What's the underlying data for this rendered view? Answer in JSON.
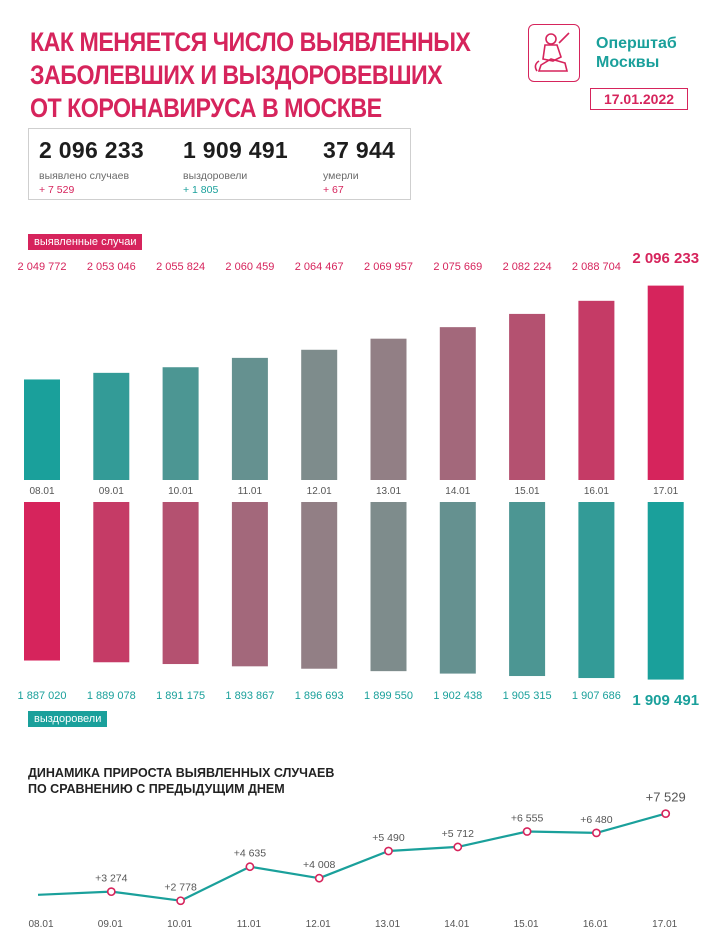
{
  "header": {
    "title_lines": [
      "КАК МЕНЯЕТСЯ ЧИСЛО ВЫЯВЛЕННЫХ",
      "ЗАБОЛЕВШИХ И ВЫЗДОРОВЕВШИХ",
      "ОТ КОРОНАВИРУСА В МОСКВЕ"
    ],
    "org_line1": "Оперштаб",
    "org_line2": "Москвы",
    "date": "17.01.2022"
  },
  "summary": {
    "cases": {
      "value": "2 096 233",
      "label": "выявлено случаев",
      "delta": "+ 7 529"
    },
    "recovered": {
      "value": "1 909 491",
      "label": "выздоровели",
      "delta": "+ 1 805"
    },
    "deaths": {
      "value": "37 944",
      "label": "умерли",
      "delta": "+ 67"
    }
  },
  "colors": {
    "pink": "#d6245c",
    "teal": "#1aa09b",
    "grey": "#8a8a8a"
  },
  "chart_data": [
    {
      "type": "bar",
      "title": "",
      "legend": "выявленные случаи",
      "categories": [
        "08.01",
        "09.01",
        "10.01",
        "11.01",
        "12.01",
        "13.01",
        "14.01",
        "15.01",
        "16.01",
        "17.01"
      ],
      "values": [
        2049772,
        2053046,
        2055824,
        2060459,
        2064467,
        2069957,
        2075669,
        2082224,
        2088704,
        2096233
      ],
      "value_labels": [
        "2 049 772",
        "2 053 046",
        "2 055 824",
        "2 060 459",
        "2 064 467",
        "2 069 957",
        "2 075 669",
        "2 082 224",
        "2 088 704",
        "2 096 233"
      ],
      "ylim": [
        2000000,
        2100000
      ]
    },
    {
      "type": "bar",
      "title": "",
      "legend": "выздоровели",
      "categories": [
        "08.01",
        "09.01",
        "10.01",
        "11.01",
        "12.01",
        "13.01",
        "14.01",
        "15.01",
        "16.01",
        "17.01"
      ],
      "values": [
        1887020,
        1889078,
        1891175,
        1893867,
        1896693,
        1899550,
        1902438,
        1905315,
        1907686,
        1909491
      ],
      "value_labels": [
        "1 887 020",
        "1 889 078",
        "1 891 175",
        "1 893 867",
        "1 896 693",
        "1 899 550",
        "1 902 438",
        "1 905 315",
        "1 907 686",
        "1 909 491"
      ],
      "ylim": [
        1700000,
        1910000
      ]
    },
    {
      "type": "line",
      "title": "ДИНАМИКА ПРИРОСТА ВЫЯВЛЕННЫХ СЛУЧАЕВ ПО СРАВНЕНИЮ С ПРЕДЫДУЩИМ ДНЕМ",
      "title_lines": [
        "ДИНАМИКА ПРИРОСТА ВЫЯВЛЕННЫХ СЛУЧАЕВ",
        "ПО СРАВНЕНИЮ С ПРЕДЫДУЩИМ ДНЕМ"
      ],
      "categories": [
        "08.01",
        "09.01",
        "10.01",
        "11.01",
        "12.01",
        "13.01",
        "14.01",
        "15.01",
        "16.01",
        "17.01"
      ],
      "values": [
        3100,
        3274,
        2778,
        4635,
        4008,
        5490,
        5712,
        6555,
        6480,
        7529
      ],
      "value_labels": [
        "",
        "+3 274",
        "+2 778",
        "+4 635",
        "+4 008",
        "+5 490",
        "+5 712",
        "+6 555",
        "+6 480",
        "+7 529"
      ],
      "ylim": [
        2000,
        8000
      ]
    }
  ]
}
